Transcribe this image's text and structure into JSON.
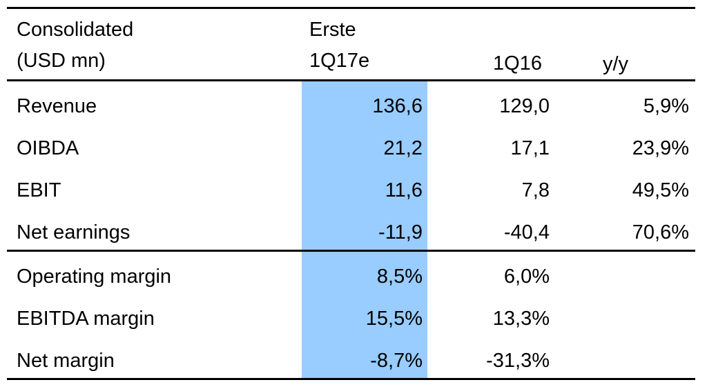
{
  "header": {
    "label_line1": "Consolidated",
    "label_line2": "(USD mn)",
    "col1_line1": "Erste",
    "col1_line2": "1Q17e",
    "col2": "1Q16",
    "col3": "y/y"
  },
  "colors": {
    "highlight_column": "#99ccff",
    "rules": "#000000"
  },
  "rows": [
    {
      "label": "Revenue",
      "erste": "136,6",
      "prev": "129,0",
      "yy": "5,9%"
    },
    {
      "label": "OIBDA",
      "erste": "21,2",
      "prev": "17,1",
      "yy": "23,9%"
    },
    {
      "label": "EBIT",
      "erste": "11,6",
      "prev": "7,8",
      "yy": "49,5%"
    },
    {
      "label": "Net earnings",
      "erste": "-11,9",
      "prev": "-40,4",
      "yy": "70,6%"
    },
    {
      "label": "Operating margin",
      "erste": "8,5%",
      "prev": "6,0%",
      "yy": ""
    },
    {
      "label": "EBITDA margin",
      "erste": "15,5%",
      "prev": "13,3%",
      "yy": ""
    },
    {
      "label": "Net margin",
      "erste": "-8,7%",
      "prev": "-31,3%",
      "yy": ""
    }
  ]
}
